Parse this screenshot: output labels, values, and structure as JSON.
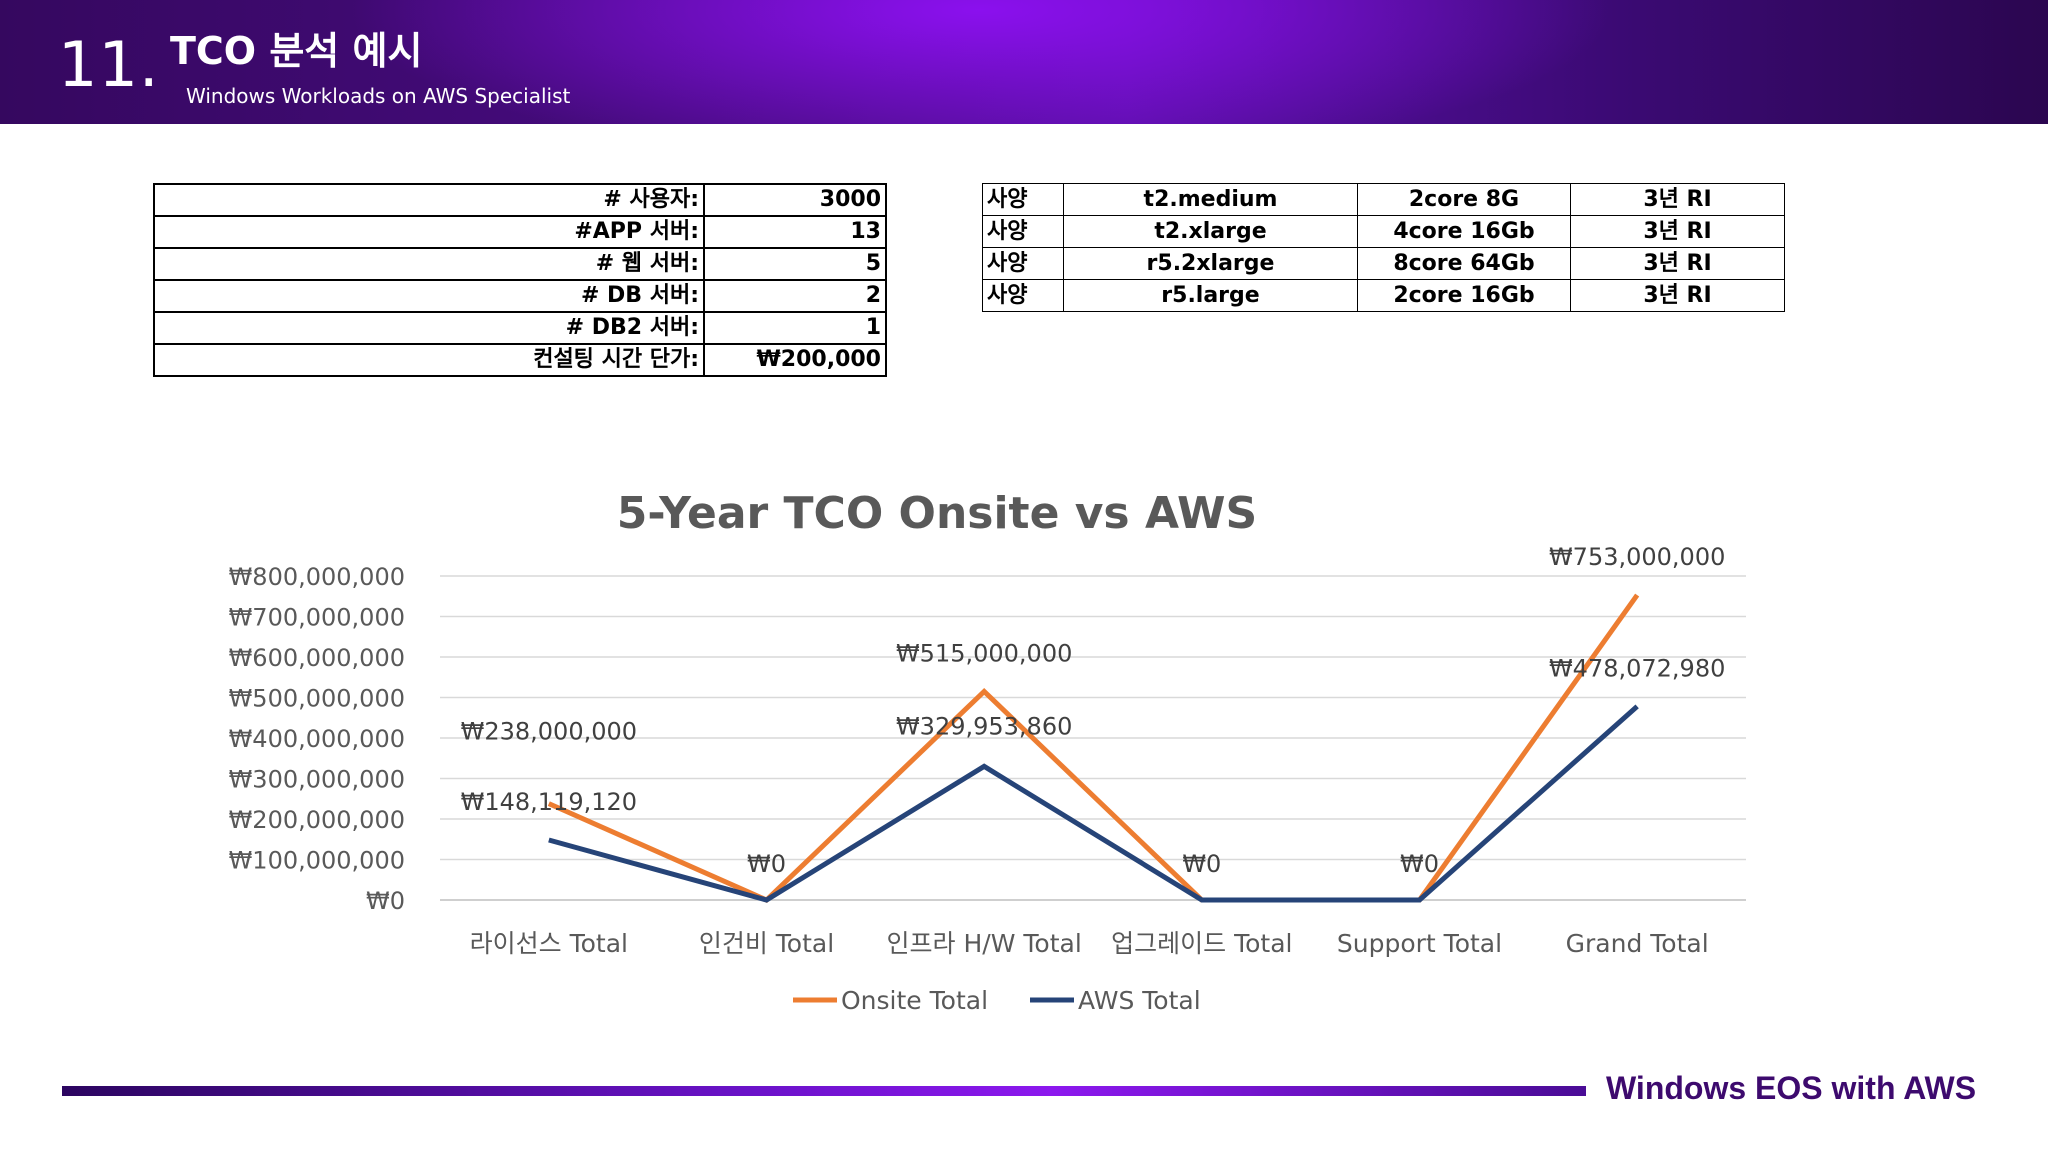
{
  "header": {
    "slide_number": "11.",
    "title": "TCO 분석 예시",
    "subtitle": "Windows Workloads on AWS Specialist"
  },
  "params_table": [
    {
      "label": "# 사용자:",
      "value": "3000"
    },
    {
      "label": "#APP 서버:",
      "value": "13"
    },
    {
      "label": "# 웹 서버:",
      "value": "5"
    },
    {
      "label": "# DB 서버:",
      "value": "2"
    },
    {
      "label": "# DB2 서버:",
      "value": "1"
    },
    {
      "label": "컨설팅 시간 단가:",
      "value": "₩200,000"
    }
  ],
  "spec_table": [
    [
      "사양",
      "t2.medium",
      "2core 8G",
      "3년 RI"
    ],
    [
      "사양",
      "t2.xlarge",
      "4core 16Gb",
      "3년 RI"
    ],
    [
      "사양",
      "r5.2xlarge",
      "8core 64Gb",
      "3년 RI"
    ],
    [
      "사양",
      "r5.large",
      "2core 16Gb",
      "3년 RI"
    ]
  ],
  "chart_data": {
    "type": "line",
    "title": "5-Year TCO Onsite vs AWS",
    "categories": [
      "라이선스 Total",
      "인건비 Total",
      "인프라 H/W Total",
      "업그레이드 Total",
      "Support Total",
      "Grand Total"
    ],
    "series": [
      {
        "name": "Onsite Total",
        "color": "#ed7d31",
        "values": [
          238000000,
          0,
          515000000,
          0,
          0,
          753000000
        ]
      },
      {
        "name": "AWS Total",
        "color": "#264478",
        "values": [
          148119120,
          0,
          329953860,
          0,
          0,
          478072980
        ]
      }
    ],
    "data_labels": [
      [
        "₩238,000,000",
        "",
        "₩515,000,000",
        "",
        "",
        "₩753,000,000"
      ],
      [
        "₩148,119,120",
        "₩0",
        "₩329,953,860",
        "₩0",
        "₩0",
        "₩478,072,980"
      ]
    ],
    "y_ticks": [
      "₩0",
      "₩100,000,000",
      "₩200,000,000",
      "₩300,000,000",
      "₩400,000,000",
      "₩500,000,000",
      "₩600,000,000",
      "₩700,000,000",
      "₩800,000,000"
    ],
    "ylim": [
      0,
      800000000
    ],
    "grid": true,
    "legend_position": "bottom"
  },
  "footer": {
    "text": "Windows EOS with AWS"
  }
}
